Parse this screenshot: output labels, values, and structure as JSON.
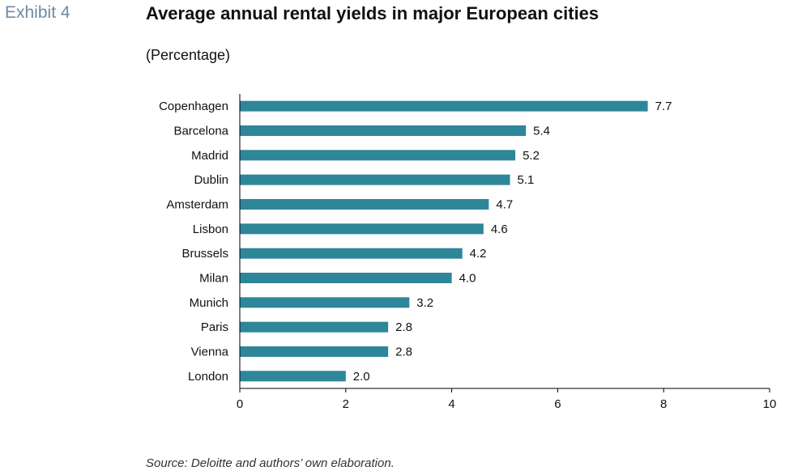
{
  "exhibit_label": "Exhibit 4",
  "title": "Average annual rental yields in major European cities",
  "subtitle": "(Percentage)",
  "source": "Source: Deloitte and authors’ own elaboration.",
  "colors": {
    "bar": "#2e8699",
    "axis": "#000000"
  },
  "chart_data": {
    "type": "bar",
    "orientation": "horizontal",
    "categories": [
      "Copenhagen",
      "Barcelona",
      "Madrid",
      "Dublin",
      "Amsterdam",
      "Lisbon",
      "Brussels",
      "Milan",
      "Munich",
      "Paris",
      "Vienna",
      "London"
    ],
    "values": [
      7.7,
      5.4,
      5.2,
      5.1,
      4.7,
      4.6,
      4.2,
      4.0,
      3.2,
      2.8,
      2.8,
      2.0
    ],
    "data_labels": [
      "7.7",
      "5.4",
      "5.2",
      "5.1",
      "4.7",
      "4.6",
      "4.2",
      "4.0",
      "3.2",
      "2.8",
      "2.8",
      "2.0"
    ],
    "xlim": [
      0,
      10
    ],
    "xticks": [
      0,
      2,
      4,
      6,
      8,
      10
    ],
    "grid": false,
    "legend": "none"
  }
}
